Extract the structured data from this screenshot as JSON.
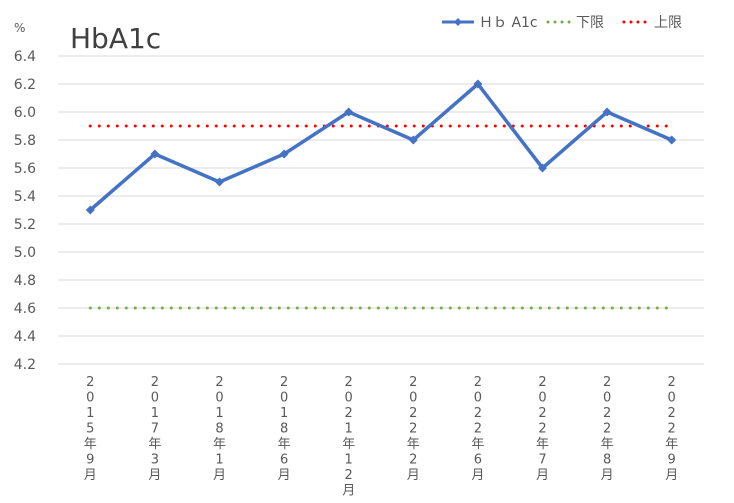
{
  "chart_data": {
    "type": "line",
    "title": "HbA1c",
    "ylabel": "%",
    "xlabel": "",
    "ylim": [
      4.2,
      6.4
    ],
    "yticks": [
      "4.2",
      "4.4",
      "4.6",
      "4.8",
      "5.0",
      "5.2",
      "5.4",
      "5.6",
      "5.8",
      "6.0",
      "6.2",
      "6.4"
    ],
    "categories": [
      "2015年9月",
      "2017年3月",
      "2018年1月",
      "2018年6月",
      "2021年12月",
      "2022年2月",
      "2022年6月",
      "2022年7月",
      "2022年8月",
      "2022年9月"
    ],
    "series": [
      {
        "name": "Ｈｂ A1c",
        "values": [
          5.3,
          5.7,
          5.5,
          5.7,
          6.0,
          5.8,
          6.2,
          5.6,
          6.0,
          5.8
        ],
        "color": "#4472C4",
        "style": "solid-marker"
      },
      {
        "name": "下限",
        "values": [
          4.6,
          4.6,
          4.6,
          4.6,
          4.6,
          4.6,
          4.6,
          4.6,
          4.6,
          4.6
        ],
        "color": "#70AD47",
        "style": "dotted"
      },
      {
        "name": "上限",
        "values": [
          5.9,
          5.9,
          5.9,
          5.9,
          5.9,
          5.9,
          5.9,
          5.9,
          5.9,
          5.9
        ],
        "color": "#FF0000",
        "style": "dotted"
      }
    ],
    "grid": true,
    "legend": "top-right"
  }
}
